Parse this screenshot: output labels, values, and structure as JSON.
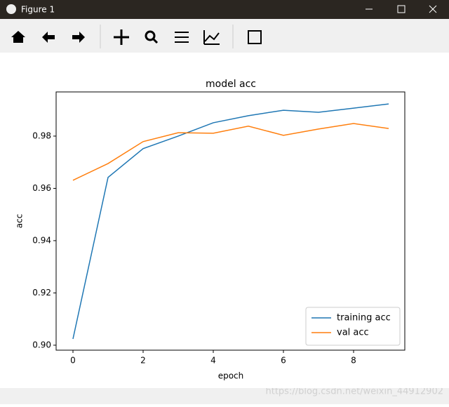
{
  "window_title": "Figure 1",
  "watermark": "https://blog.csdn.net/weixin_44912902",
  "chart_data": {
    "type": "line",
    "title": "model acc",
    "x_label": "epoch",
    "y_label": "acc",
    "x": [
      0,
      1,
      2,
      3,
      4,
      5,
      6,
      7,
      8,
      9
    ],
    "series": [
      {
        "name": "training acc",
        "color": "#1f77b4",
        "values": [
          0.9024,
          0.9642,
          0.9752,
          0.98,
          0.9851,
          0.9878,
          0.9899,
          0.9891,
          0.9907,
          0.9923
        ]
      },
      {
        "name": "val acc",
        "color": "#ff7f0e",
        "values": [
          0.9631,
          0.9695,
          0.9779,
          0.9813,
          0.9811,
          0.9838,
          0.9803,
          0.9827,
          0.9848,
          0.9829
        ]
      }
    ],
    "xlim": [
      -0.48,
      9.46
    ],
    "ylim": [
      0.8981,
      0.9969
    ],
    "xticks": [
      0,
      2,
      4,
      6,
      8
    ],
    "yticks": [
      {
        "value": 0.9,
        "label": "0.90"
      },
      {
        "value": 0.92,
        "label": "0.92"
      },
      {
        "value": 0.94,
        "label": "0.94"
      },
      {
        "value": 0.96,
        "label": "0.96"
      },
      {
        "value": 0.98,
        "label": "0.98"
      }
    ],
    "legend": "lower right",
    "grid": false
  }
}
